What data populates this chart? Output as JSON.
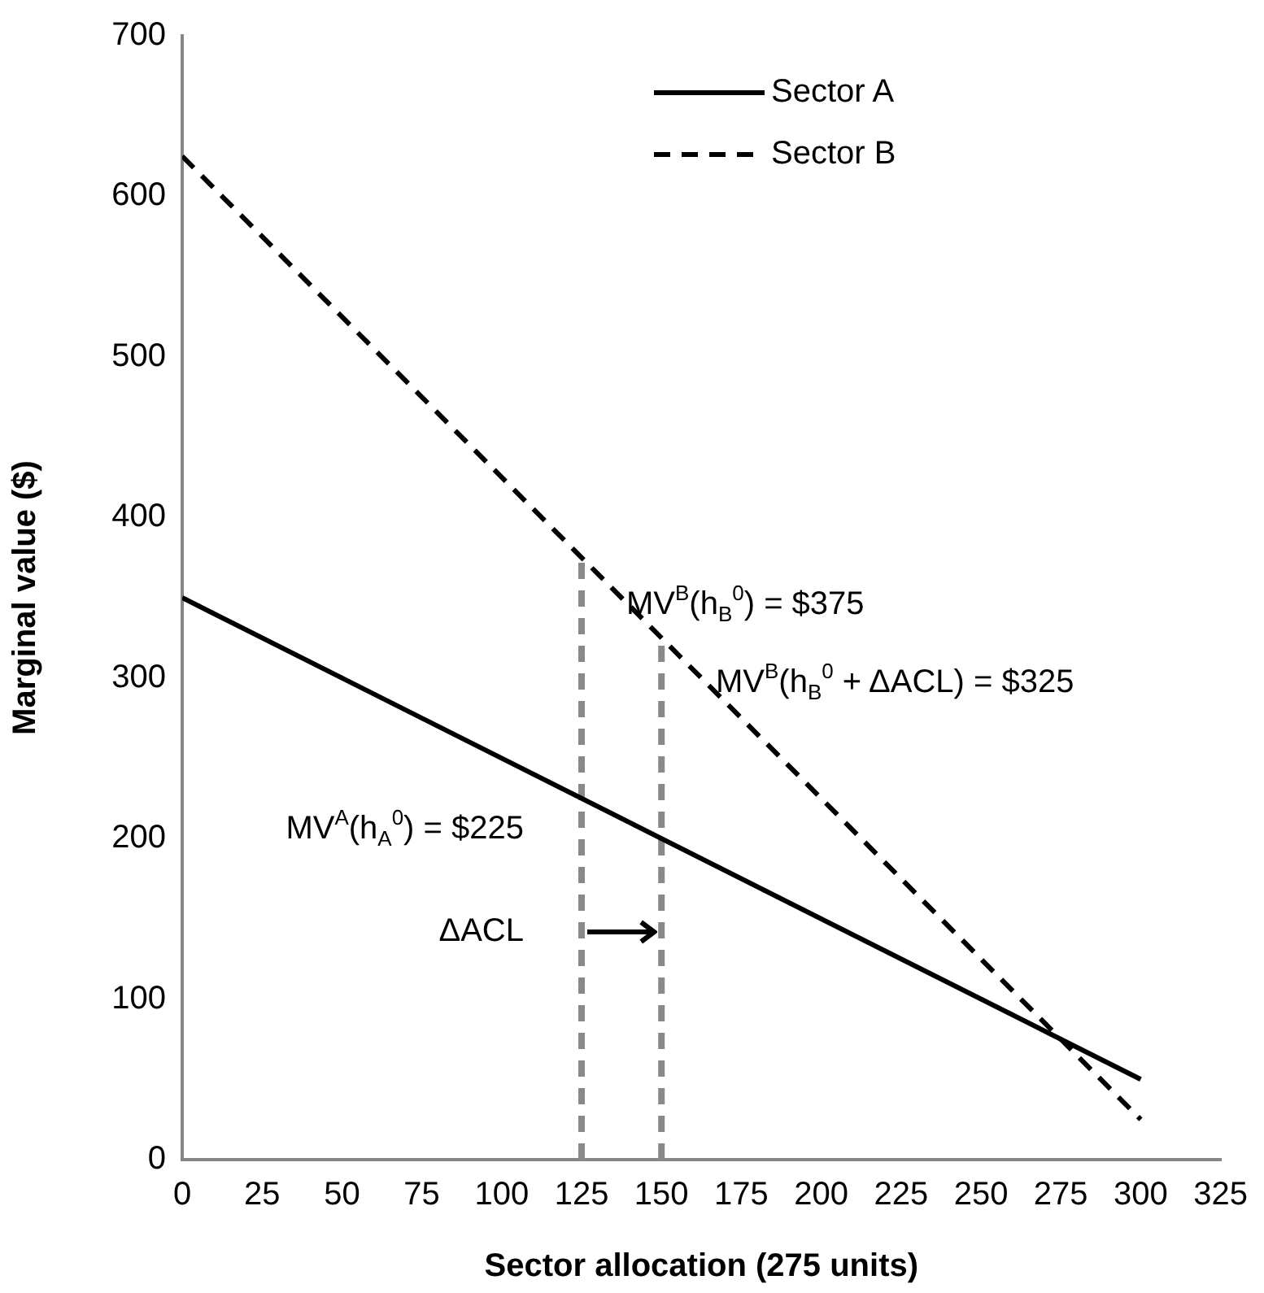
{
  "chart_data": {
    "type": "line",
    "xlabel": "Sector allocation (275 units)",
    "ylabel": "Marginal value ($)",
    "xlim": [
      0,
      325
    ],
    "xticks": [
      0,
      25,
      50,
      75,
      100,
      125,
      150,
      175,
      200,
      225,
      250,
      275,
      300,
      325
    ],
    "ylim": [
      0,
      700
    ],
    "yticks": [
      0,
      100,
      200,
      300,
      400,
      500,
      600,
      700
    ],
    "grid": false,
    "legend": "top right",
    "marker": "none",
    "series": [
      {
        "name": "Sector A",
        "color": "#000000",
        "line_style": "solid",
        "x": [
          0,
          300
        ],
        "values": [
          350,
          50
        ]
      },
      {
        "name": "Sector B",
        "color": "#000000",
        "line_style": "dashed",
        "x": [
          0,
          300
        ],
        "values": [
          625,
          25
        ]
      },
      {
        "color": "#898989",
        "line_style": "dashed",
        "x": [
          125,
          125
        ],
        "values": [
          0,
          375
        ]
      },
      {
        "color": "#898989",
        "line_style": "dashed",
        "x": [
          150,
          150
        ],
        "values": [
          0,
          325
        ]
      }
    ],
    "annotations": [
      "MV$^{B}$(h$_{B}$$^{0}$) = $375",
      "MV$^{B}$(h$_{B}$$^{0}$ + ΔACL) = $325",
      "MV$^{A}$(h$_{A}$$^{0}$) = $225",
      "ΔACL"
    ]
  }
}
